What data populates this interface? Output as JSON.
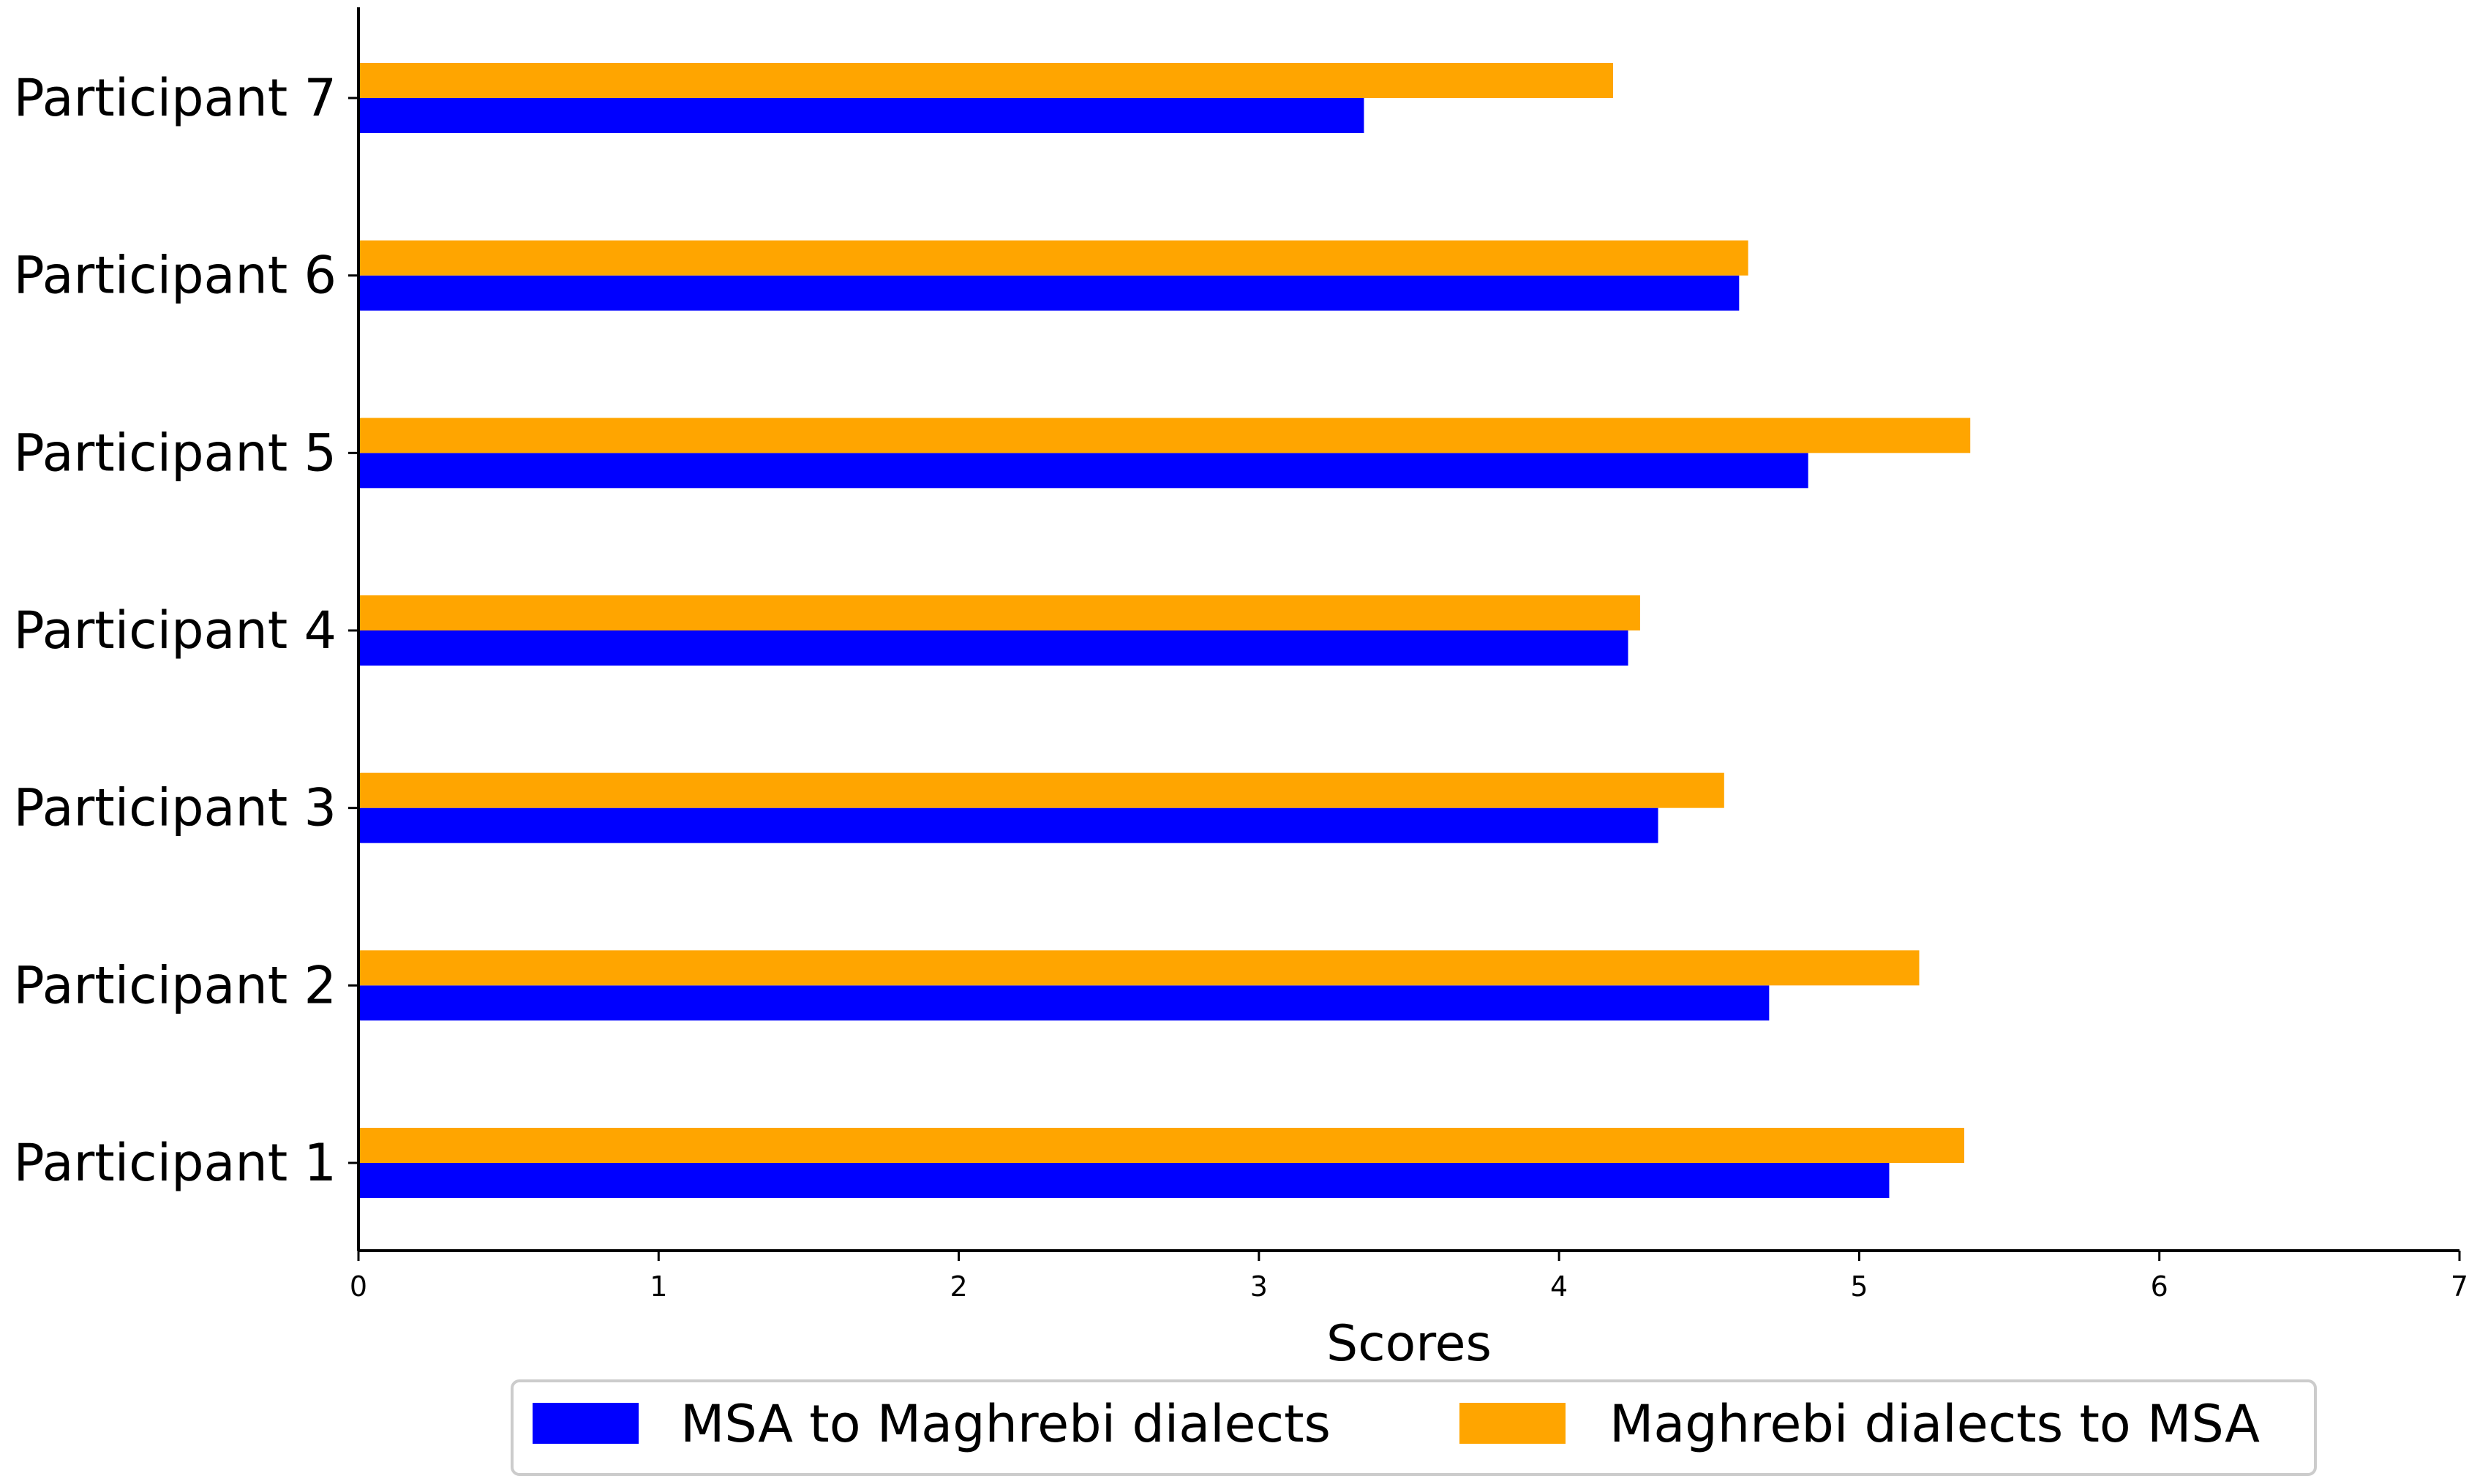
{
  "chart_data": {
    "type": "bar",
    "orientation": "horizontal",
    "categories": [
      "Participant 1",
      "Participant 2",
      "Participant 3",
      "Participant 4",
      "Participant 5",
      "Participant 6",
      "Participant 7"
    ],
    "series": [
      {
        "name": "MSA to Maghrebi dialects",
        "color": "#0000ff",
        "values": [
          5.1,
          4.7,
          4.33,
          4.23,
          4.83,
          4.6,
          3.35
        ]
      },
      {
        "name": "Maghrebi dialects to MSA",
        "color": "#ffa500",
        "values": [
          5.35,
          5.2,
          4.55,
          4.27,
          5.37,
          4.63,
          4.18
        ]
      }
    ],
    "title": "",
    "xlabel": "Scores",
    "ylabel": "",
    "xlim": [
      0,
      7
    ],
    "xticks": [
      "0",
      "1",
      "2",
      "3",
      "4",
      "5",
      "6",
      "7"
    ],
    "grid": false,
    "legend_position": "bottom"
  }
}
